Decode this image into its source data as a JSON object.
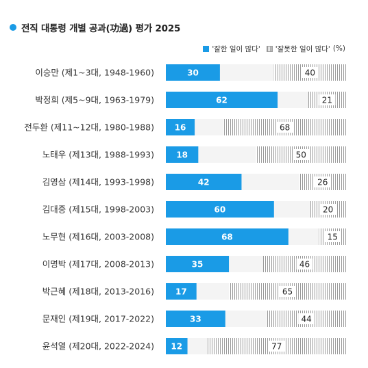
{
  "title": "전직 대통령 개별 공과(功過) 평가 2025",
  "legend": {
    "good": "'잘한 일이 많다'",
    "bad": "'잘못한 일이 많다'",
    "unit": "(%)"
  },
  "colors": {
    "good": "#1a9be6",
    "bad_hatch": "#9a9a9a",
    "track": "#f4f4f4"
  },
  "chart_data": {
    "type": "bar",
    "orientation": "horizontal",
    "categories": [
      "이승만 (제1~3대, 1948-1960)",
      "박정희 (제5~9대, 1963-1979)",
      "전두환 (제11~12대, 1980-1988)",
      "노태우 (제13대, 1988-1993)",
      "김영삼 (제14대, 1993-1998)",
      "김대중 (제15대, 1998-2003)",
      "노무현 (제16대, 2003-2008)",
      "이명박 (제17대, 2008-2013)",
      "박근혜 (제18대, 2013-2016)",
      "문재인 (제19대, 2017-2022)",
      "윤석열 (제20대, 2022-2024)"
    ],
    "series": [
      {
        "name": "'잘한 일이 많다'",
        "values": [
          30,
          62,
          16,
          18,
          42,
          60,
          68,
          35,
          17,
          33,
          12
        ]
      },
      {
        "name": "'잘못한 일이 많다'",
        "values": [
          40,
          21,
          68,
          50,
          26,
          20,
          15,
          46,
          65,
          44,
          77
        ]
      }
    ],
    "xlim": [
      0,
      100
    ]
  }
}
